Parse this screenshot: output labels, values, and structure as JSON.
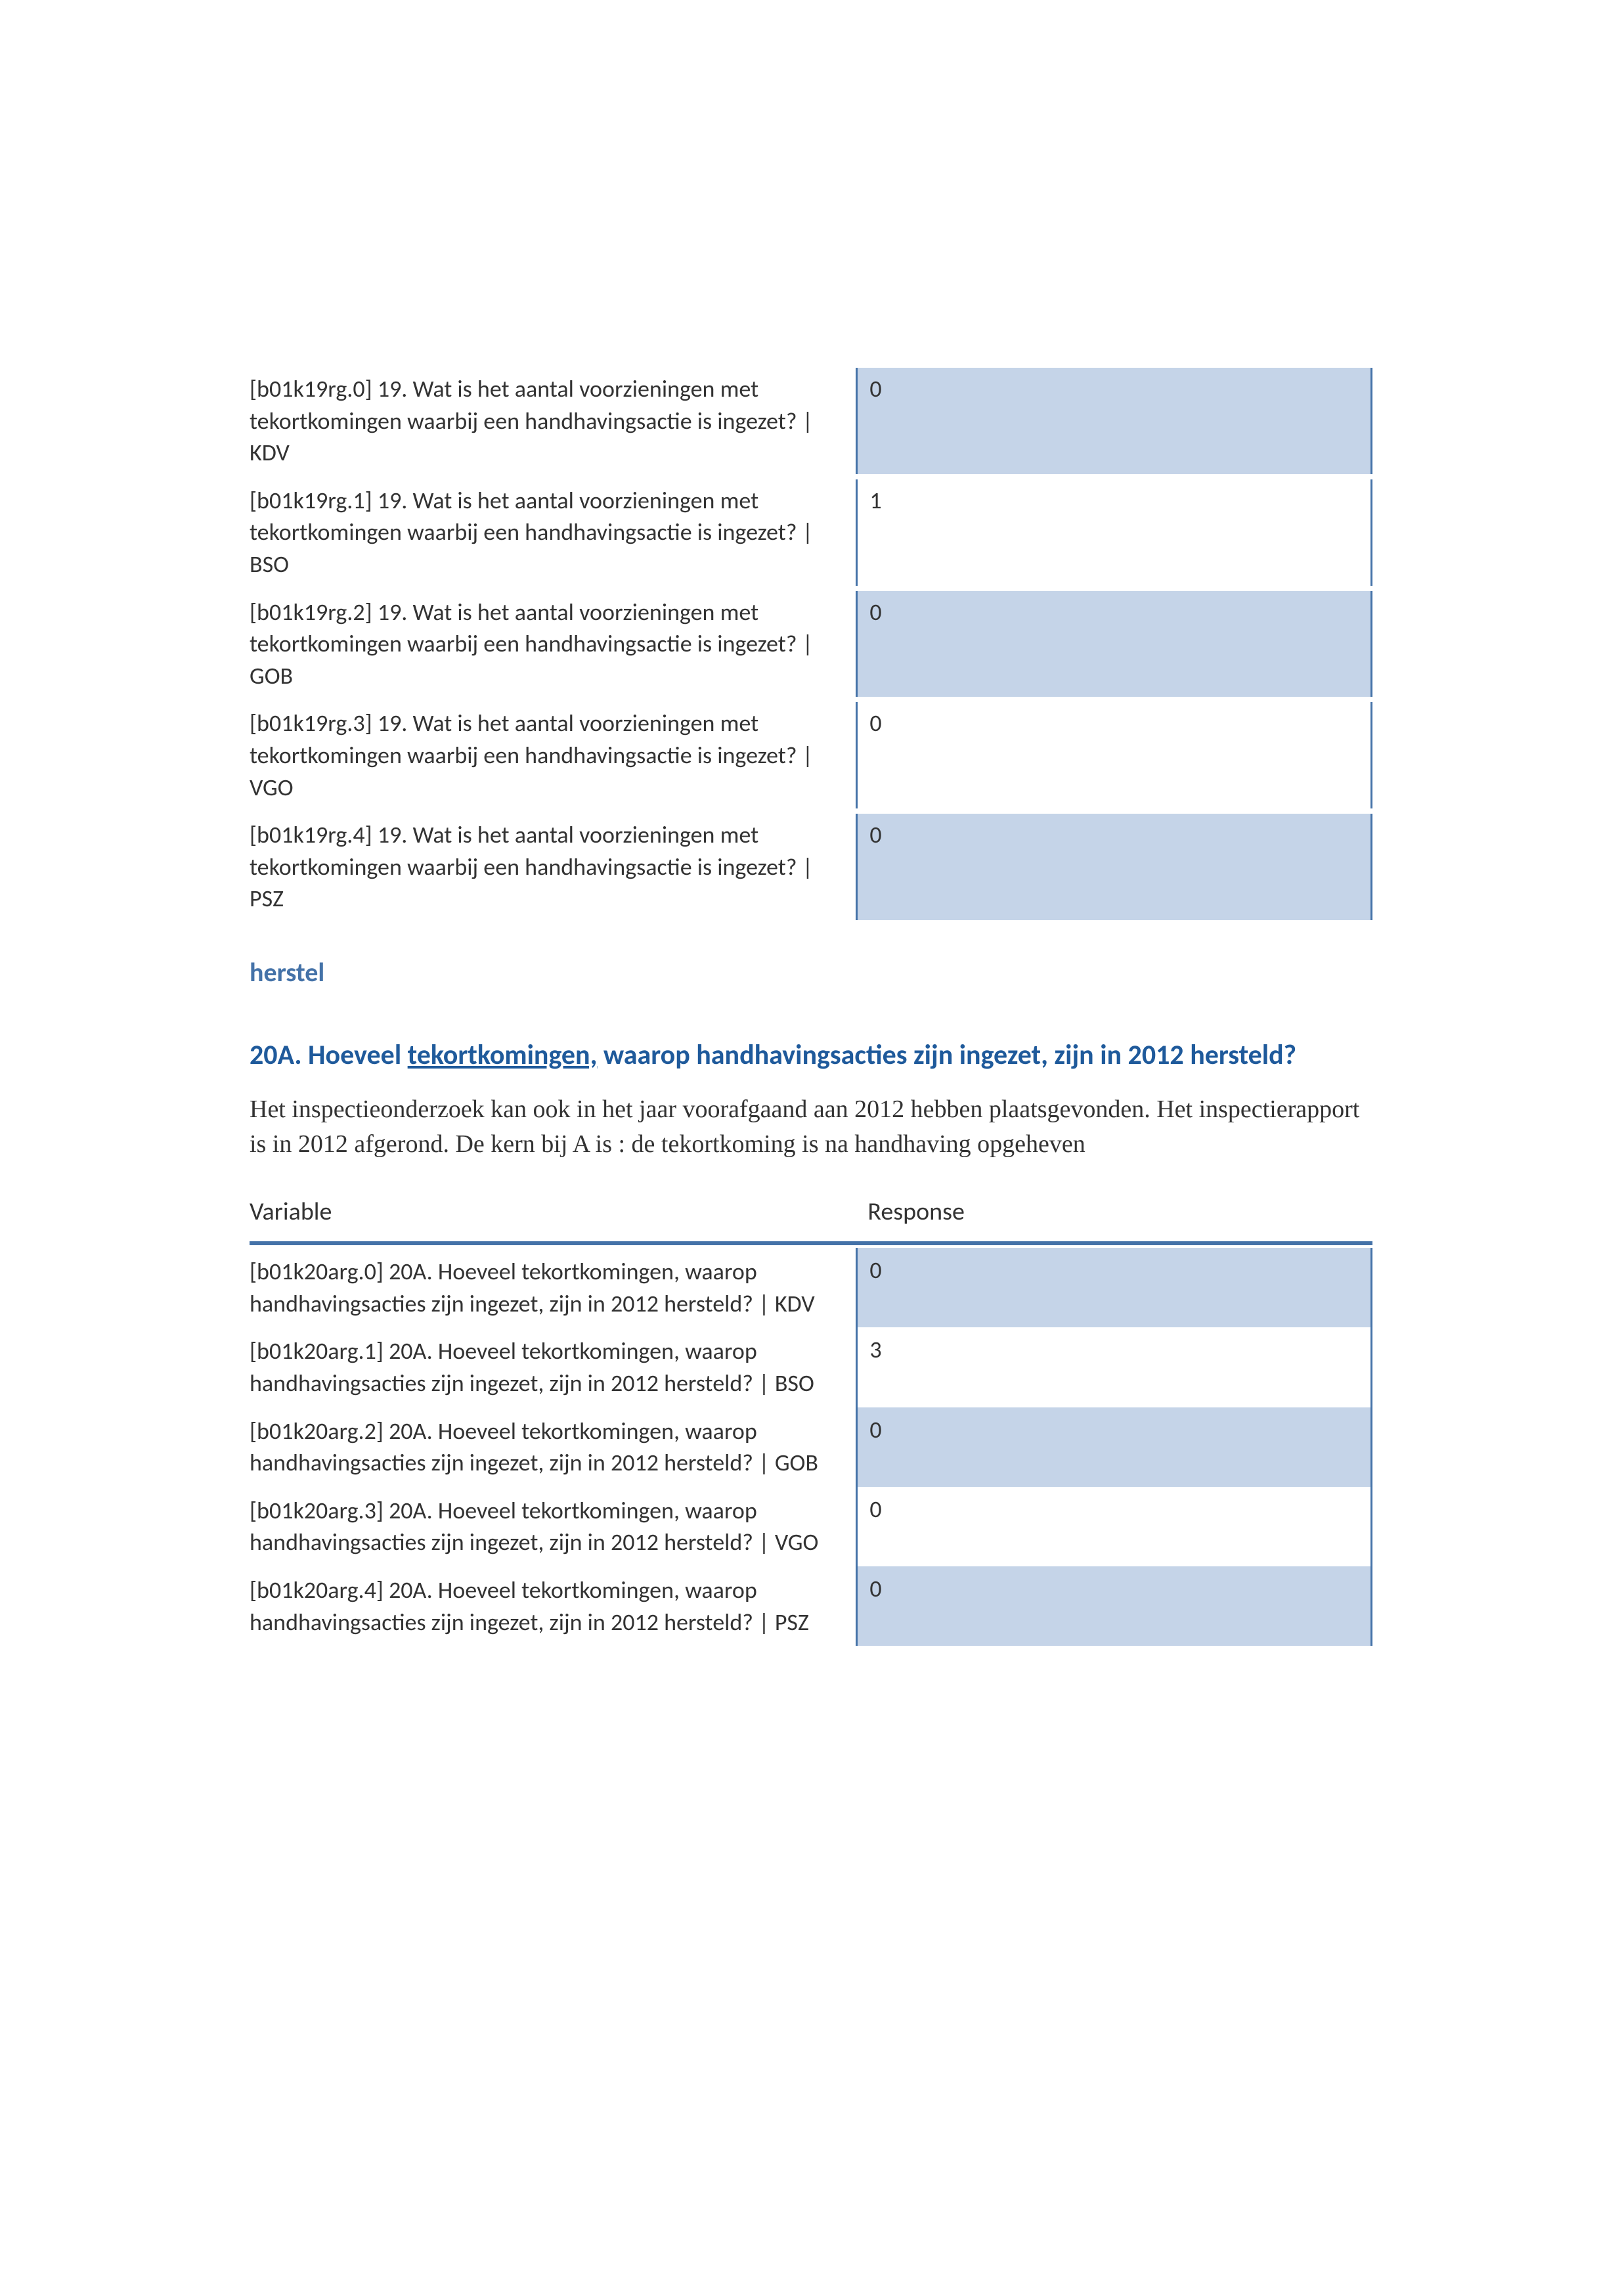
{
  "table1": {
    "rows": [
      {
        "variable": "[b01k19rg.0] 19. Wat is het aantal voorzieningen met tekortkomingen waarbij een handhavingsactie is ingezet? | KDV",
        "response": "0",
        "shaded": true
      },
      {
        "variable": "[b01k19rg.1] 19. Wat is het aantal voorzieningen met tekortkomingen waarbij een handhavingsactie is ingezet? | BSO",
        "response": "1",
        "shaded": false
      },
      {
        "variable": "[b01k19rg.2] 19. Wat is het aantal voorzieningen met tekortkomingen waarbij een handhavingsactie is ingezet? | GOB",
        "response": "0",
        "shaded": true
      },
      {
        "variable": "[b01k19rg.3] 19. Wat is het aantal voorzieningen met tekortkomingen waarbij een handhavingsactie is ingezet? | VGO",
        "response": "0",
        "shaded": false
      },
      {
        "variable": "[b01k19rg.4] 19. Wat is het aantal voorzieningen met tekortkomingen waarbij een handhavingsactie is ingezet? | PSZ",
        "response": "0",
        "shaded": true
      }
    ]
  },
  "sectionHeading": "herstel",
  "sectionTitle": {
    "prefix": "20A. Hoeveel ",
    "underlined": "tekortkomingen,",
    "suffix": " waarop handhavingsacties zijn ingezet, zijn in 2012 hersteld?"
  },
  "description": "Het inspectieonderzoek kan ook in het jaar voorafgaand aan 2012 hebben plaatsgevonden. Het inspectierapport is in 2012 afgerond. De kern bij A is : de tekortkoming is na handhaving opgeheven",
  "table2": {
    "headerVariable": "Variable",
    "headerResponse": "Response",
    "rows": [
      {
        "variable": "[b01k20arg.0] 20A. Hoeveel tekortkomingen, waarop handhavingsacties zijn ingezet, zijn in 2012 hersteld? | KDV",
        "response": "0",
        "shaded": true
      },
      {
        "variable": "[b01k20arg.1] 20A. Hoeveel tekortkomingen, waarop handhavingsacties zijn ingezet, zijn in 2012 hersteld? | BSO",
        "response": "3",
        "shaded": false
      },
      {
        "variable": "[b01k20arg.2] 20A. Hoeveel tekortkomingen, waarop handhavingsacties zijn ingezet, zijn in 2012 hersteld? | GOB",
        "response": "0",
        "shaded": true
      },
      {
        "variable": "[b01k20arg.3] 20A. Hoeveel tekortkomingen, waarop handhavingsacties zijn ingezet, zijn in 2012 hersteld? | VGO",
        "response": "0",
        "shaded": false
      },
      {
        "variable": "[b01k20arg.4] 20A. Hoeveel tekortkomingen, waarop handhavingsacties zijn ingezet, zijn in 2012 hersteld? | PSZ",
        "response": "0",
        "shaded": true
      }
    ]
  },
  "colors": {
    "accent": "#4472a8",
    "shadedCell": "#c5d4e8",
    "titleText": "#1f5a9b",
    "bodyText": "#333333"
  }
}
